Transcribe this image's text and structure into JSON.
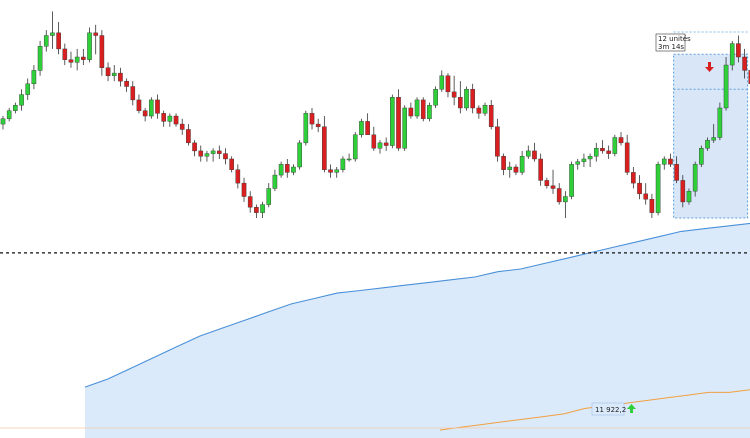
{
  "chart_data": {
    "type": "candlestick",
    "title": "",
    "xlabel": "",
    "ylabel": "",
    "colors": {
      "up": "#2fcf3a",
      "down": "#d91f1f",
      "wick": "#333333",
      "band_line": "#4a90d9",
      "band_fill": "#dbeafa",
      "lower_line": "#f0a040",
      "dashed_level": "#111111",
      "measure_fill": "#c8dcf5",
      "measure_border": "#5aa0e0",
      "arrow_up": "#2fcf3a",
      "arrow_down": "#d91f1f"
    },
    "candles": [
      {
        "o": 2,
        "h": 5,
        "l": 0,
        "c": 4
      },
      {
        "o": 4,
        "h": 8,
        "l": 3,
        "c": 7
      },
      {
        "o": 7,
        "h": 10,
        "l": 6,
        "c": 9
      },
      {
        "o": 9,
        "h": 15,
        "l": 7,
        "c": 13
      },
      {
        "o": 13,
        "h": 19,
        "l": 11,
        "c": 17
      },
      {
        "o": 17,
        "h": 24,
        "l": 15,
        "c": 22
      },
      {
        "o": 22,
        "h": 33,
        "l": 20,
        "c": 31
      },
      {
        "o": 31,
        "h": 37,
        "l": 29,
        "c": 35
      },
      {
        "o": 35,
        "h": 44,
        "l": 30,
        "c": 36
      },
      {
        "o": 36,
        "h": 40,
        "l": 28,
        "c": 30
      },
      {
        "o": 30,
        "h": 32,
        "l": 24,
        "c": 26
      },
      {
        "o": 26,
        "h": 29,
        "l": 23,
        "c": 25
      },
      {
        "o": 25,
        "h": 30,
        "l": 22,
        "c": 27
      },
      {
        "o": 27,
        "h": 30,
        "l": 24,
        "c": 26
      },
      {
        "o": 26,
        "h": 38,
        "l": 25,
        "c": 36
      },
      {
        "o": 36,
        "h": 39,
        "l": 28,
        "c": 35
      },
      {
        "o": 35,
        "h": 37,
        "l": 20,
        "c": 23
      },
      {
        "o": 23,
        "h": 25,
        "l": 18,
        "c": 20
      },
      {
        "o": 20,
        "h": 24,
        "l": 18,
        "c": 21
      },
      {
        "o": 21,
        "h": 23,
        "l": 16,
        "c": 18
      },
      {
        "o": 18,
        "h": 19,
        "l": 14,
        "c": 16
      },
      {
        "o": 16,
        "h": 18,
        "l": 9,
        "c": 11
      },
      {
        "o": 11,
        "h": 13,
        "l": 6,
        "c": 7
      },
      {
        "o": 7,
        "h": 8,
        "l": 3,
        "c": 5
      },
      {
        "o": 5,
        "h": 12,
        "l": 4,
        "c": 11
      },
      {
        "o": 11,
        "h": 13,
        "l": 4,
        "c": 6
      },
      {
        "o": 6,
        "h": 7,
        "l": 1,
        "c": 3
      },
      {
        "o": 3,
        "h": 6,
        "l": 1,
        "c": 5
      },
      {
        "o": 5,
        "h": 6,
        "l": 1,
        "c": 2
      },
      {
        "o": 2,
        "h": 4,
        "l": -2,
        "c": 0
      },
      {
        "o": 0,
        "h": 2,
        "l": -6,
        "c": -5
      },
      {
        "o": -5,
        "h": -4,
        "l": -10,
        "c": -8
      },
      {
        "o": -8,
        "h": -6,
        "l": -12,
        "c": -10
      },
      {
        "o": -10,
        "h": -8,
        "l": -12,
        "c": -9
      },
      {
        "o": -9,
        "h": -7,
        "l": -12,
        "c": -8
      },
      {
        "o": -8,
        "h": -6,
        "l": -11,
        "c": -9
      },
      {
        "o": -9,
        "h": -7,
        "l": -13,
        "c": -11
      },
      {
        "o": -11,
        "h": -10,
        "l": -16,
        "c": -15
      },
      {
        "o": -15,
        "h": -13,
        "l": -22,
        "c": -20
      },
      {
        "o": -20,
        "h": -18,
        "l": -27,
        "c": -25
      },
      {
        "o": -25,
        "h": -23,
        "l": -31,
        "c": -29
      },
      {
        "o": -29,
        "h": -28,
        "l": -33,
        "c": -31
      },
      {
        "o": -31,
        "h": -27,
        "l": -33,
        "c": -28
      },
      {
        "o": -28,
        "h": -20,
        "l": -29,
        "c": -22
      },
      {
        "o": -22,
        "h": -15,
        "l": -23,
        "c": -17
      },
      {
        "o": -17,
        "h": -12,
        "l": -18,
        "c": -13
      },
      {
        "o": -13,
        "h": -11,
        "l": -18,
        "c": -16
      },
      {
        "o": -16,
        "h": -13,
        "l": -17,
        "c": -14
      },
      {
        "o": -14,
        "h": -4,
        "l": -15,
        "c": -5
      },
      {
        "o": -5,
        "h": 7,
        "l": -6,
        "c": 6
      },
      {
        "o": 6,
        "h": 8,
        "l": 0,
        "c": 2
      },
      {
        "o": 2,
        "h": 4,
        "l": -1,
        "c": 1
      },
      {
        "o": 1,
        "h": 5,
        "l": -16,
        "c": -15
      },
      {
        "o": -15,
        "h": -13,
        "l": -18,
        "c": -16
      },
      {
        "o": -16,
        "h": -14,
        "l": -18,
        "c": -15
      },
      {
        "o": -15,
        "h": -10,
        "l": -16,
        "c": -11
      },
      {
        "o": -11,
        "h": -9,
        "l": -12,
        "c": -11
      },
      {
        "o": -11,
        "h": -1,
        "l": -12,
        "c": -2
      },
      {
        "o": -2,
        "h": 4,
        "l": -3,
        "c": 3
      },
      {
        "o": 3,
        "h": 6,
        "l": -1,
        "c": -2
      },
      {
        "o": -2,
        "h": 1,
        "l": -8,
        "c": -7
      },
      {
        "o": -7,
        "h": -4,
        "l": -9,
        "c": -5
      },
      {
        "o": -5,
        "h": -3,
        "l": -8,
        "c": -6
      },
      {
        "o": -6,
        "h": 13,
        "l": -7,
        "c": 12
      },
      {
        "o": 12,
        "h": 15,
        "l": -8,
        "c": -7
      },
      {
        "o": -7,
        "h": 9,
        "l": -8,
        "c": 8
      },
      {
        "o": 8,
        "h": 10,
        "l": 4,
        "c": 5
      },
      {
        "o": 5,
        "h": 12,
        "l": 4,
        "c": 11
      },
      {
        "o": 11,
        "h": 12,
        "l": 3,
        "c": 4
      },
      {
        "o": 4,
        "h": 10,
        "l": 3,
        "c": 9
      },
      {
        "o": 9,
        "h": 16,
        "l": 8,
        "c": 15
      },
      {
        "o": 15,
        "h": 22,
        "l": 14,
        "c": 20
      },
      {
        "o": 20,
        "h": 21,
        "l": 12,
        "c": 14
      },
      {
        "o": 14,
        "h": 20,
        "l": 9,
        "c": 12
      },
      {
        "o": 12,
        "h": 18,
        "l": 6,
        "c": 8
      },
      {
        "o": 8,
        "h": 16,
        "l": 7,
        "c": 15
      },
      {
        "o": 15,
        "h": 17,
        "l": 6,
        "c": 8
      },
      {
        "o": 8,
        "h": 9,
        "l": 4,
        "c": 6
      },
      {
        "o": 6,
        "h": 10,
        "l": 5,
        "c": 9
      },
      {
        "o": 9,
        "h": 11,
        "l": 0,
        "c": 1
      },
      {
        "o": 1,
        "h": 4,
        "l": -12,
        "c": -10
      },
      {
        "o": -10,
        "h": -9,
        "l": -17,
        "c": -15
      },
      {
        "o": -15,
        "h": -12,
        "l": -18,
        "c": -14
      },
      {
        "o": -14,
        "h": -13,
        "l": -17,
        "c": -16
      },
      {
        "o": -16,
        "h": -8,
        "l": -17,
        "c": -10
      },
      {
        "o": -10,
        "h": -6,
        "l": -11,
        "c": -8
      },
      {
        "o": -8,
        "h": -5,
        "l": -12,
        "c": -11
      },
      {
        "o": -11,
        "h": -9,
        "l": -21,
        "c": -19
      },
      {
        "o": -19,
        "h": -18,
        "l": -22,
        "c": -21
      },
      {
        "o": -21,
        "h": -15,
        "l": -24,
        "c": -22
      },
      {
        "o": -22,
        "h": -20,
        "l": -28,
        "c": -27
      },
      {
        "o": -27,
        "h": -23,
        "l": -33,
        "c": -25
      },
      {
        "o": -25,
        "h": -12,
        "l": -26,
        "c": -13
      },
      {
        "o": -13,
        "h": -11,
        "l": -15,
        "c": -12
      },
      {
        "o": -12,
        "h": -9,
        "l": -14,
        "c": -11
      },
      {
        "o": -11,
        "h": -9,
        "l": -14,
        "c": -10
      },
      {
        "o": -10,
        "h": -5,
        "l": -12,
        "c": -7
      },
      {
        "o": -7,
        "h": -4,
        "l": -9,
        "c": -8
      },
      {
        "o": -8,
        "h": -6,
        "l": -11,
        "c": -9
      },
      {
        "o": -9,
        "h": -2,
        "l": -10,
        "c": -3
      },
      {
        "o": -3,
        "h": -1,
        "l": -6,
        "c": -5
      },
      {
        "o": -5,
        "h": -2,
        "l": -17,
        "c": -16
      },
      {
        "o": -16,
        "h": -14,
        "l": -22,
        "c": -20
      },
      {
        "o": -20,
        "h": -17,
        "l": -26,
        "c": -24
      },
      {
        "o": -24,
        "h": -20,
        "l": -28,
        "c": -26
      },
      {
        "o": -26,
        "h": -24,
        "l": -33,
        "c": -31
      },
      {
        "o": -31,
        "h": -12,
        "l": -32,
        "c": -13
      },
      {
        "o": -13,
        "h": -10,
        "l": -15,
        "c": -11
      },
      {
        "o": -11,
        "h": -9,
        "l": -14,
        "c": -13
      },
      {
        "o": -13,
        "h": -10,
        "l": -20,
        "c": -19
      },
      {
        "o": -19,
        "h": -17,
        "l": -29,
        "c": -27
      },
      {
        "o": -27,
        "h": -22,
        "l": -28,
        "c": -23
      },
      {
        "o": -23,
        "h": -12,
        "l": -25,
        "c": -13
      },
      {
        "o": -13,
        "h": -6,
        "l": -14,
        "c": -7
      },
      {
        "o": -7,
        "h": -3,
        "l": -8,
        "c": -4
      },
      {
        "o": -4,
        "h": 2,
        "l": -5,
        "c": -3
      },
      {
        "o": -3,
        "h": 10,
        "l": -4,
        "c": 8
      },
      {
        "o": 8,
        "h": 27,
        "l": 7,
        "c": 24
      },
      {
        "o": 24,
        "h": 33,
        "l": 22,
        "c": 32
      },
      {
        "o": 32,
        "h": 35,
        "l": 25,
        "c": 27
      },
      {
        "o": 27,
        "h": 30,
        "l": 19,
        "c": 22
      },
      {
        "o": 22,
        "h": 24,
        "l": 15,
        "c": 17
      },
      {
        "o": 17,
        "h": 20,
        "l": 14,
        "c": 15
      },
      {
        "o": 15,
        "h": 19,
        "l": 12,
        "c": 18
      },
      {
        "o": 18,
        "h": 22,
        "l": 16,
        "c": 17
      }
    ],
    "band_upper": [
      -96,
      -93,
      -89,
      -85,
      -81,
      -77,
      -74,
      -71,
      -68,
      -65,
      -63,
      -61,
      -60,
      -59,
      -58,
      -57,
      -56,
      -55,
      -53,
      -52,
      -50,
      -48,
      -46,
      -44,
      -42,
      -40,
      -38,
      -37,
      -36,
      -35
    ],
    "lower_line": [
      -112,
      -111,
      -110,
      -109,
      -108,
      -107,
      -106,
      -104,
      -103,
      -102,
      -101,
      -100,
      -99,
      -98,
      -98,
      -97
    ],
    "dashed_level": -46,
    "measure_box": {
      "from_candle": 109,
      "to_candle": 120,
      "low": -33,
      "high": 28,
      "mid": 15
    },
    "annotations": {
      "measure_label_line1": "12 unités",
      "measure_label_line2": "3m 14s",
      "price_tag": "11 922,2"
    },
    "ylim": [
      -112,
      46
    ]
  }
}
